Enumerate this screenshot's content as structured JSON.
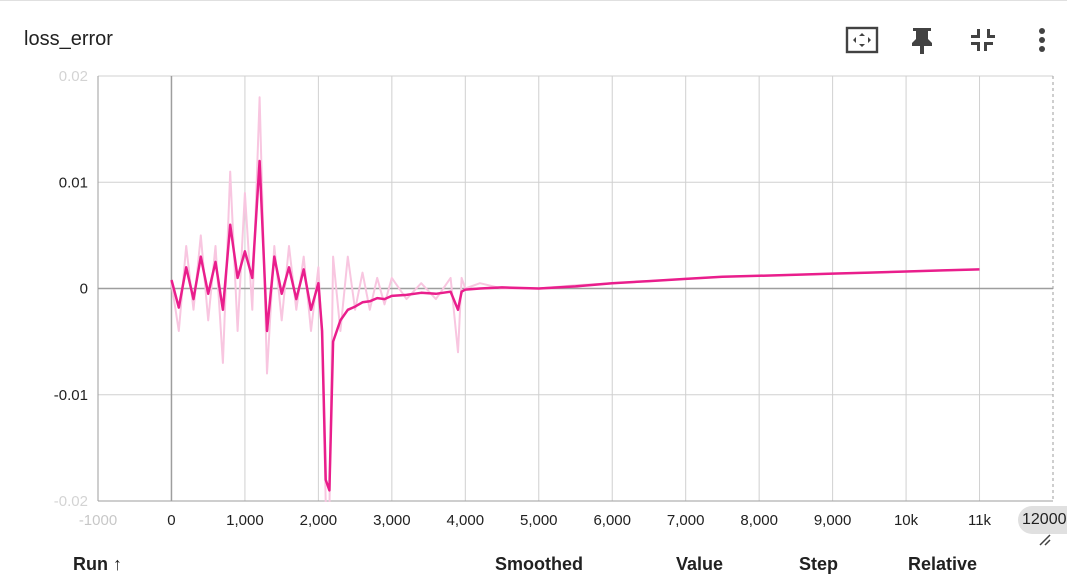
{
  "card": {
    "title": "loss_error",
    "toolbar": {
      "fit_icon": "fit-to-domain-icon",
      "pin_icon": "pin-icon",
      "collapse_icon": "collapse-icon",
      "menu_icon": "more-vert-icon"
    }
  },
  "table_header": {
    "run": "Run ↑",
    "smoothed": "Smoothed",
    "value": "Value",
    "step": "Step",
    "relative": "Relative"
  },
  "colors": {
    "smoothed_line": "#e91e8c",
    "raw_line": "#f8c6e0",
    "grid": "#d0d0d0",
    "axis": "#9e9e9e"
  },
  "chart_data": {
    "type": "line",
    "title": "loss_error",
    "xlabel": "",
    "ylabel": "",
    "xlim": [
      -1000,
      12000
    ],
    "ylim": [
      -0.02,
      0.02
    ],
    "x_ticks": [
      -1000,
      0,
      1000,
      2000,
      3000,
      4000,
      5000,
      6000,
      7000,
      8000,
      9000,
      10000,
      11000,
      12000
    ],
    "x_tick_labels": [
      "-1000",
      "0",
      "1,000",
      "2,000",
      "3,000",
      "4,000",
      "5,000",
      "6,000",
      "7,000",
      "8,000",
      "9,000",
      "10k",
      "11k",
      "12000"
    ],
    "y_ticks": [
      -0.02,
      -0.01,
      0,
      0.01,
      0.02
    ],
    "y_tick_labels": [
      "-0.02",
      "-0.01",
      "0",
      "0.01",
      "0.02"
    ],
    "grid": true,
    "series": [
      {
        "variant": "raw",
        "x": [
          0,
          100,
          200,
          300,
          400,
          500,
          600,
          700,
          800,
          900,
          1000,
          1100,
          1200,
          1300,
          1400,
          1500,
          1600,
          1700,
          1800,
          1900,
          2000,
          2050,
          2100,
          2150,
          2200,
          2300,
          2400,
          2500,
          2600,
          2700,
          2800,
          2900,
          3000,
          3200,
          3400,
          3600,
          3800,
          3900,
          3950,
          4000,
          4200,
          4500,
          5000,
          5500,
          6000,
          6500,
          7000,
          7500,
          8000,
          8500,
          9000,
          9500,
          10000,
          10500,
          11000
        ],
        "y": [
          0.0005,
          -0.004,
          0.004,
          -0.002,
          0.005,
          -0.003,
          0.004,
          -0.007,
          0.011,
          -0.004,
          0.009,
          -0.002,
          0.018,
          -0.008,
          0.004,
          -0.003,
          0.004,
          -0.002,
          0.003,
          -0.004,
          0.002,
          -0.005,
          -0.02,
          -0.021,
          0.003,
          -0.004,
          0.003,
          -0.002,
          0.0015,
          -0.002,
          0.001,
          -0.0015,
          0.001,
          -0.001,
          0.0005,
          -0.001,
          0.001,
          -0.006,
          0.001,
          0.0,
          0.0005,
          0.0,
          0.0,
          0.0003,
          0.0005,
          0.0007,
          0.0009,
          0.0011,
          0.0012,
          0.0013,
          0.0014,
          0.0015,
          0.0016,
          0.0017,
          0.0018
        ]
      },
      {
        "variant": "smoothed",
        "x": [
          0,
          100,
          200,
          300,
          400,
          500,
          600,
          700,
          800,
          900,
          1000,
          1100,
          1200,
          1300,
          1400,
          1500,
          1600,
          1700,
          1800,
          1900,
          2000,
          2050,
          2100,
          2150,
          2200,
          2300,
          2400,
          2500,
          2600,
          2700,
          2800,
          2900,
          3000,
          3200,
          3400,
          3600,
          3800,
          3900,
          3950,
          4000,
          4200,
          4500,
          5000,
          5500,
          6000,
          6500,
          7000,
          7500,
          8000,
          8500,
          9000,
          9500,
          10000,
          10500,
          11000
        ],
        "y": [
          0.0008,
          -0.0018,
          0.002,
          -0.001,
          0.003,
          -0.0005,
          0.0025,
          -0.002,
          0.006,
          0.001,
          0.0035,
          0.001,
          0.012,
          -0.004,
          0.003,
          -0.0005,
          0.002,
          -0.001,
          0.0018,
          -0.002,
          0.0005,
          -0.004,
          -0.018,
          -0.019,
          -0.005,
          -0.003,
          -0.002,
          -0.0017,
          -0.0013,
          -0.0012,
          -0.0009,
          -0.001,
          -0.0007,
          -0.0006,
          -0.0004,
          -0.0005,
          -0.0003,
          -0.002,
          -0.0003,
          -0.0001,
          0.0,
          0.0001,
          0.0,
          0.0002,
          0.0005,
          0.0007,
          0.0009,
          0.0011,
          0.0012,
          0.0013,
          0.0014,
          0.0015,
          0.0016,
          0.0017,
          0.0018
        ]
      }
    ]
  }
}
